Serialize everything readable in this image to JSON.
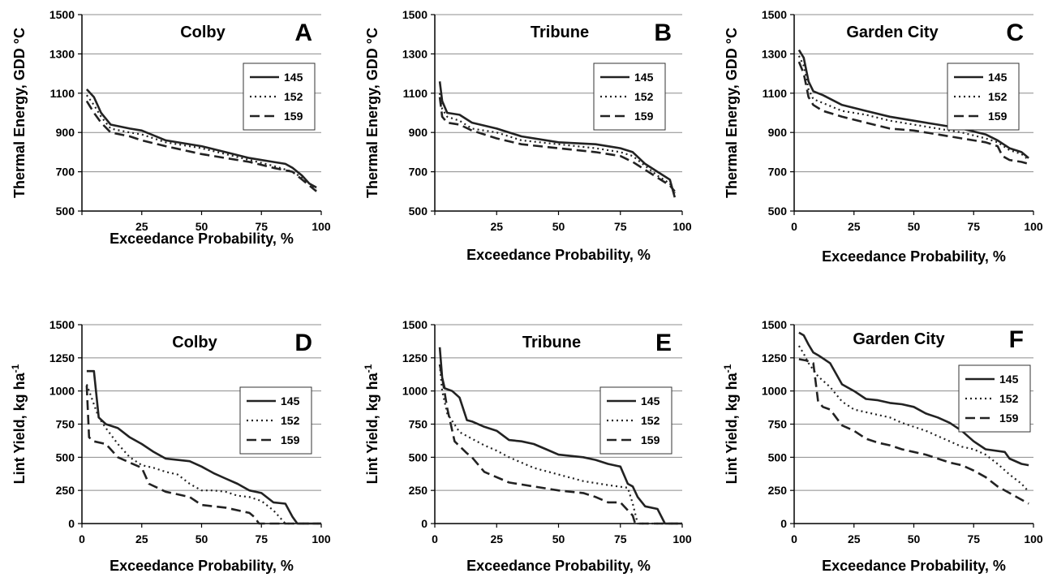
{
  "chart_data": [
    {
      "type": "line",
      "panel": "A",
      "title": "Colby",
      "xlabel": "Exceedance Probability, %",
      "ylabel": "Thermal Energy, GDD °C",
      "xlim": [
        0,
        100
      ],
      "ylim": [
        500,
        1500
      ],
      "xticks": [
        0,
        25,
        50,
        75,
        100
      ],
      "yticks": [
        500,
        700,
        900,
        1100,
        1300,
        1500
      ],
      "xtick_labels": [
        "",
        "25",
        "50",
        "75",
        "100"
      ],
      "ytick_labels": [
        "500",
        "700",
        "900",
        "1100",
        "1300",
        "1500"
      ],
      "grid": "horizontal",
      "legend": "right",
      "series": [
        {
          "name": "145",
          "dash": "solid",
          "x": [
            2,
            5,
            8,
            12,
            20,
            25,
            35,
            50,
            60,
            70,
            80,
            85,
            88,
            92,
            95,
            98
          ],
          "y": [
            1120,
            1080,
            1000,
            940,
            920,
            910,
            860,
            830,
            800,
            770,
            750,
            740,
            720,
            680,
            640,
            620
          ]
        },
        {
          "name": "152",
          "dash": "dot",
          "x": [
            2,
            5,
            8,
            12,
            20,
            25,
            35,
            50,
            60,
            70,
            80,
            88,
            92,
            95,
            98
          ],
          "y": [
            1090,
            1040,
            980,
            920,
            900,
            890,
            850,
            820,
            790,
            760,
            730,
            700,
            670,
            640,
            610
          ]
        },
        {
          "name": "159",
          "dash": "dash",
          "x": [
            2,
            5,
            8,
            12,
            20,
            25,
            35,
            50,
            60,
            70,
            80,
            88,
            92,
            95,
            98
          ],
          "y": [
            1060,
            1000,
            950,
            900,
            880,
            860,
            830,
            790,
            770,
            750,
            720,
            700,
            660,
            630,
            600
          ]
        }
      ]
    },
    {
      "type": "line",
      "panel": "B",
      "title": "Tribune",
      "xlabel": "Exceedance Probability, %",
      "ylabel": "Thermal Energy, GDD °C",
      "xlim": [
        0,
        100
      ],
      "ylim": [
        500,
        1500
      ],
      "xticks": [
        0,
        25,
        50,
        75,
        100
      ],
      "yticks": [
        500,
        700,
        900,
        1100,
        1300,
        1500
      ],
      "xtick_labels": [
        "",
        "25",
        "50",
        "75",
        "100"
      ],
      "ytick_labels": [
        "500",
        "700",
        "900",
        "1100",
        "1300",
        "1500"
      ],
      "grid": "horizontal",
      "legend": "right",
      "series": [
        {
          "name": "145",
          "dash": "solid",
          "x": [
            2,
            3,
            5,
            10,
            15,
            25,
            35,
            50,
            65,
            75,
            80,
            85,
            90,
            95,
            97
          ],
          "y": [
            1160,
            1060,
            1000,
            990,
            950,
            920,
            880,
            850,
            840,
            820,
            800,
            740,
            700,
            660,
            570
          ]
        },
        {
          "name": "152",
          "dash": "dot",
          "x": [
            2,
            3,
            5,
            10,
            15,
            25,
            35,
            50,
            65,
            75,
            80,
            85,
            90,
            95,
            97
          ],
          "y": [
            1100,
            1020,
            980,
            960,
            920,
            900,
            860,
            840,
            820,
            800,
            780,
            730,
            680,
            640,
            590
          ]
        },
        {
          "name": "159",
          "dash": "dash",
          "x": [
            2,
            3,
            5,
            10,
            15,
            25,
            35,
            50,
            65,
            75,
            80,
            85,
            90,
            95,
            97
          ],
          "y": [
            1080,
            980,
            950,
            940,
            910,
            870,
            840,
            820,
            800,
            780,
            750,
            710,
            670,
            630,
            600
          ]
        }
      ]
    },
    {
      "type": "line",
      "panel": "C",
      "title": "Garden City",
      "xlabel": "Exceedance Probability, %",
      "ylabel": "Thermal Energy, GDD °C",
      "xlim": [
        0,
        100
      ],
      "ylim": [
        500,
        1500
      ],
      "xticks": [
        0,
        25,
        50,
        75,
        100
      ],
      "yticks": [
        500,
        700,
        900,
        1100,
        1300,
        1500
      ],
      "xtick_labels": [
        "0",
        "25",
        "50",
        "75",
        "100"
      ],
      "ytick_labels": [
        "500",
        "700",
        "900",
        "1100",
        "1300",
        "1500"
      ],
      "grid": "horizontal",
      "legend": "right",
      "series": [
        {
          "name": "145",
          "dash": "solid",
          "x": [
            2,
            4,
            6,
            8,
            12,
            20,
            30,
            40,
            50,
            60,
            70,
            80,
            85,
            90,
            95,
            98
          ],
          "y": [
            1320,
            1280,
            1160,
            1110,
            1090,
            1040,
            1010,
            980,
            960,
            940,
            920,
            890,
            860,
            820,
            800,
            770
          ]
        },
        {
          "name": "152",
          "dash": "dot",
          "x": [
            2,
            4,
            6,
            8,
            12,
            20,
            30,
            40,
            50,
            60,
            70,
            80,
            85,
            90,
            95,
            98
          ],
          "y": [
            1290,
            1240,
            1120,
            1070,
            1050,
            1010,
            990,
            960,
            940,
            920,
            900,
            870,
            850,
            810,
            790,
            760
          ]
        },
        {
          "name": "159",
          "dash": "dash",
          "x": [
            2,
            4,
            6,
            8,
            12,
            20,
            30,
            40,
            50,
            60,
            70,
            80,
            85,
            87,
            90,
            95,
            98
          ],
          "y": [
            1260,
            1200,
            1080,
            1040,
            1010,
            980,
            950,
            920,
            910,
            890,
            870,
            850,
            830,
            780,
            760,
            750,
            740
          ]
        }
      ]
    },
    {
      "type": "line",
      "panel": "D",
      "title": "Colby",
      "xlabel": "Exceedance Probability, %",
      "ylabel": "Lint Yield, kg ha",
      "ylabel_superscript": "-1",
      "xlim": [
        0,
        100
      ],
      "ylim": [
        0,
        1500
      ],
      "xticks": [
        0,
        25,
        50,
        75,
        100
      ],
      "yticks": [
        0,
        250,
        500,
        750,
        1000,
        1250,
        1500
      ],
      "xtick_labels": [
        "0",
        "25",
        "50",
        "75",
        "100"
      ],
      "ytick_labels": [
        "0",
        "250",
        "500",
        "750",
        "1000",
        "1250",
        "1500"
      ],
      "grid": "horizontal",
      "legend": "right",
      "series": [
        {
          "name": "145",
          "dash": "solid",
          "x": [
            2,
            4,
            5,
            7,
            10,
            15,
            20,
            25,
            30,
            35,
            40,
            45,
            50,
            55,
            60,
            65,
            70,
            75,
            80,
            85,
            88,
            90,
            100
          ],
          "y": [
            1150,
            1150,
            1150,
            800,
            750,
            720,
            650,
            600,
            540,
            490,
            480,
            470,
            430,
            380,
            340,
            300,
            250,
            230,
            160,
            150,
            50,
            0,
            0
          ]
        },
        {
          "name": "152",
          "dash": "dot",
          "x": [
            2,
            4,
            7,
            10,
            15,
            20,
            25,
            30,
            35,
            40,
            45,
            50,
            55,
            60,
            65,
            70,
            75,
            80,
            83,
            85,
            100
          ],
          "y": [
            1050,
            950,
            800,
            720,
            600,
            500,
            440,
            420,
            390,
            370,
            300,
            250,
            250,
            240,
            210,
            200,
            170,
            100,
            40,
            0,
            0
          ]
        },
        {
          "name": "159",
          "dash": "dash",
          "x": [
            2,
            3,
            5,
            10,
            15,
            20,
            25,
            28,
            35,
            45,
            50,
            60,
            70,
            72,
            74,
            100
          ],
          "y": [
            1040,
            650,
            620,
            600,
            500,
            460,
            420,
            300,
            240,
            200,
            140,
            120,
            80,
            50,
            0,
            0
          ]
        }
      ]
    },
    {
      "type": "line",
      "panel": "E",
      "title": "Tribune",
      "xlabel": "Exceedance Probability, %",
      "ylabel": "Lint Yield, kg ha",
      "ylabel_superscript": "-1",
      "xlim": [
        0,
        100
      ],
      "ylim": [
        0,
        1500
      ],
      "xticks": [
        0,
        25,
        50,
        75,
        100
      ],
      "yticks": [
        0,
        250,
        500,
        750,
        1000,
        1250,
        1500
      ],
      "xtick_labels": [
        "0",
        "25",
        "50",
        "75",
        "100"
      ],
      "ytick_labels": [
        "0",
        "250",
        "500",
        "750",
        "1000",
        "1250",
        "1500"
      ],
      "grid": "horizontal",
      "legend": "right",
      "series": [
        {
          "name": "145",
          "dash": "solid",
          "x": [
            2,
            3,
            4,
            7,
            10,
            13,
            15,
            20,
            25,
            30,
            35,
            40,
            45,
            50,
            60,
            65,
            70,
            75,
            78,
            80,
            82,
            85,
            90,
            93,
            100
          ],
          "y": [
            1330,
            1100,
            1020,
            1000,
            950,
            780,
            770,
            730,
            700,
            630,
            620,
            600,
            560,
            520,
            500,
            480,
            450,
            430,
            300,
            280,
            200,
            130,
            110,
            0,
            0
          ]
        },
        {
          "name": "152",
          "dash": "dot",
          "x": [
            2,
            3,
            5,
            10,
            15,
            20,
            25,
            30,
            40,
            50,
            60,
            70,
            78,
            80,
            82,
            100
          ],
          "y": [
            1200,
            1000,
            830,
            690,
            640,
            590,
            550,
            500,
            420,
            370,
            320,
            290,
            270,
            150,
            0,
            0
          ]
        },
        {
          "name": "159",
          "dash": "dash",
          "x": [
            2,
            3,
            5,
            8,
            13,
            15,
            20,
            30,
            40,
            50,
            60,
            65,
            70,
            75,
            78,
            80,
            81,
            100
          ],
          "y": [
            1200,
            1100,
            870,
            620,
            530,
            500,
            390,
            310,
            280,
            250,
            230,
            200,
            160,
            160,
            100,
            60,
            0,
            0
          ]
        }
      ]
    },
    {
      "type": "line",
      "panel": "F",
      "title": "Garden City",
      "xlabel": "Exceedance Probability, %",
      "ylabel": "Lint Yield, kg ha",
      "ylabel_superscript": "-1",
      "xlim": [
        0,
        100
      ],
      "ylim": [
        0,
        1500
      ],
      "xticks": [
        0,
        25,
        50,
        75,
        100
      ],
      "yticks": [
        0,
        250,
        500,
        750,
        1000,
        1250,
        1500
      ],
      "xtick_labels": [
        "0",
        "25",
        "50",
        "75",
        "100"
      ],
      "ytick_labels": [
        "0",
        "250",
        "500",
        "750",
        "1000",
        "1250",
        "1500"
      ],
      "grid": "horizontal",
      "legend": "right",
      "series": [
        {
          "name": "145",
          "dash": "solid",
          "x": [
            2,
            4,
            6,
            8,
            10,
            15,
            20,
            25,
            30,
            35,
            40,
            45,
            50,
            55,
            60,
            65,
            70,
            75,
            80,
            88,
            90,
            95,
            98
          ],
          "y": [
            1440,
            1420,
            1350,
            1290,
            1270,
            1210,
            1050,
            1000,
            940,
            930,
            910,
            900,
            880,
            830,
            800,
            760,
            700,
            620,
            560,
            540,
            490,
            450,
            440
          ]
        },
        {
          "name": "152",
          "dash": "dot",
          "x": [
            2,
            4,
            6,
            10,
            15,
            20,
            25,
            30,
            35,
            40,
            45,
            50,
            55,
            60,
            65,
            70,
            75,
            80,
            85,
            90,
            95,
            98
          ],
          "y": [
            1340,
            1280,
            1210,
            1110,
            1030,
            920,
            860,
            840,
            820,
            800,
            760,
            730,
            700,
            660,
            620,
            580,
            560,
            520,
            450,
            370,
            300,
            240
          ]
        },
        {
          "name": "159",
          "dash": "dash",
          "x": [
            2,
            5,
            8,
            10,
            12,
            15,
            20,
            25,
            30,
            35,
            40,
            45,
            50,
            55,
            60,
            65,
            70,
            75,
            80,
            85,
            90,
            95,
            98
          ],
          "y": [
            1240,
            1230,
            1210,
            920,
            880,
            860,
            740,
            700,
            640,
            610,
            590,
            560,
            540,
            520,
            490,
            460,
            440,
            400,
            350,
            280,
            230,
            180,
            150
          ]
        }
      ]
    }
  ]
}
